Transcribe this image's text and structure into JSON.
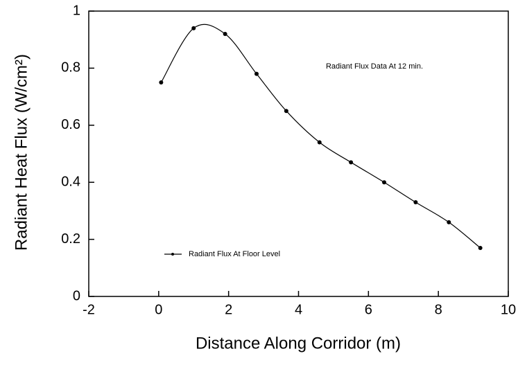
{
  "chart_data": {
    "type": "line",
    "title": "Radiant Flux Data At 12 min.",
    "x_label": "Distance Along Corridor (m)",
    "y_label": "Radiant Heat Flux (W/cm²)",
    "x": [
      0.07,
      1.0,
      1.9,
      2.8,
      3.65,
      4.6,
      5.5,
      6.45,
      7.35,
      8.3,
      9.2
    ],
    "series": [
      {
        "name": "Radiant Flux At Floor Level",
        "color": "#000000",
        "values": [
          0.75,
          0.94,
          0.92,
          0.78,
          0.65,
          0.54,
          0.47,
          0.4,
          0.33,
          0.26,
          0.17
        ]
      }
    ],
    "xlim": [
      -2,
      10
    ],
    "xticks": [
      -2,
      0,
      2,
      4,
      6,
      8,
      10
    ],
    "ylim": [
      0,
      1
    ],
    "yticks": [
      0,
      0.2,
      0.4,
      0.6,
      0.8,
      1
    ],
    "grid": false
  }
}
